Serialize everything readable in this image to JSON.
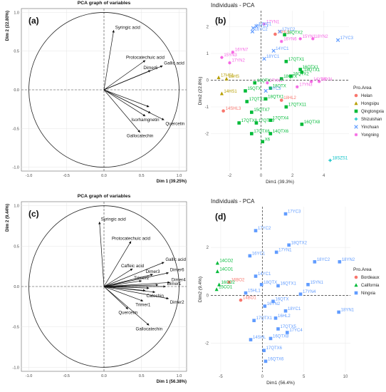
{
  "panels": {
    "a": {
      "letter": "(a)",
      "chart_data": {
        "type": "scatter",
        "subtype": "pca-correlation-circle",
        "title": "PCA graph of variables",
        "xlabel": "Dim 1 (39.25%)",
        "ylabel": "Dim 2 (22.80%)",
        "xlim": [
          -1.1,
          1.1
        ],
        "ylim": [
          -1.05,
          1.05
        ],
        "xticks": [
          "-1.0",
          "-0.5",
          "0.0",
          "0.5",
          "1.0"
        ],
        "yticks": [
          "-1.0",
          "-0.5",
          "0.0",
          "0.5",
          "1.0"
        ],
        "grid": true,
        "vectors": [
          {
            "name": "Syringic acid",
            "x": 0.13,
            "y": 0.77
          },
          {
            "name": "Protocatechuic acid",
            "x": 0.55,
            "y": 0.38
          },
          {
            "name": "Gallic acid",
            "x": 0.78,
            "y": 0.31
          },
          {
            "name": "Dimer6",
            "x": 0.62,
            "y": 0.25
          },
          {
            "name": "Isorhamgnetin",
            "x": 0.55,
            "y": -0.34
          },
          {
            "name": "Quercetin",
            "x": 0.8,
            "y": -0.39
          },
          {
            "name": "Gallocatechin",
            "x": 0.48,
            "y": -0.55
          },
          {
            "name": "",
            "x": 0.6,
            "y": -0.22
          },
          {
            "name": "",
            "x": 0.62,
            "y": -0.3
          }
        ]
      }
    },
    "b": {
      "letter": "(b)",
      "chart_data": {
        "type": "scatter",
        "title": "Individuals - PCA",
        "xlabel": "Dim1 (39.3%)",
        "ylabel": "Dim2 (22.8%)",
        "xlim": [
          -3.2,
          5.6
        ],
        "ylim": [
          -3.4,
          2.6
        ],
        "xticks": [
          -2,
          0,
          2,
          4
        ],
        "yticks": [
          -2,
          -1,
          0,
          1,
          2
        ],
        "grid": true,
        "legend": {
          "title": "Pro.Area",
          "placement": "right",
          "entries": [
            {
              "label": "Helan",
              "color": "#F8766D",
              "shape": "circle"
            },
            {
              "label": "Hongsipu",
              "color": "#B79F00",
              "shape": "triangle"
            },
            {
              "label": "Qingtongxia",
              "color": "#00BA38",
              "shape": "square"
            },
            {
              "label": "Shizuishan",
              "color": "#00BFC4",
              "shape": "plus"
            },
            {
              "label": "Yinchuan",
              "color": "#619CFF",
              "shape": "cross"
            },
            {
              "label": "Yongning",
              "color": "#F564E3",
              "shape": "asterisk"
            }
          ]
        },
        "points": [
          {
            "label": "17YN1",
            "x": 0.2,
            "y": 2.1,
            "group": "Yongning"
          },
          {
            "label": "16YC1",
            "x": -0.5,
            "y": 1.95,
            "group": "Yinchuan"
          },
          {
            "label": "17YC1",
            "x": -0.3,
            "y": 2.02,
            "group": "Yinchuan"
          },
          {
            "label": "16YC2",
            "x": -0.55,
            "y": 1.82,
            "group": "Yinchuan"
          },
          {
            "label": "16HL1",
            "x": 0.9,
            "y": 1.72,
            "group": "Helan"
          },
          {
            "label": "17YC2",
            "x": 1.2,
            "y": 1.82,
            "group": "Yinchuan"
          },
          {
            "label": "18QTX2",
            "x": 1.5,
            "y": 1.7,
            "group": "Qingtongxia"
          },
          {
            "label": "15YN1",
            "x": 2.5,
            "y": 1.55,
            "group": "Yongning"
          },
          {
            "label": "18YN2",
            "x": 3.3,
            "y": 1.55,
            "group": "Yongning"
          },
          {
            "label": "17YC3",
            "x": 4.9,
            "y": 1.5,
            "group": "Yinchuan"
          },
          {
            "label": "16YN6",
            "x": 1.3,
            "y": 1.45,
            "group": "Yongning"
          },
          {
            "label": "14YC1",
            "x": 0.8,
            "y": 1.1,
            "group": "Yinchuan"
          },
          {
            "label": "16YN7",
            "x": -1.8,
            "y": 1.05,
            "group": "Yongning"
          },
          {
            "label": "15YN3",
            "x": -2.5,
            "y": 0.85,
            "group": "Yongning"
          },
          {
            "label": "17QTX1",
            "x": 1.6,
            "y": 0.7,
            "group": "Qingtongxia"
          },
          {
            "label": "18YC1",
            "x": 0.2,
            "y": 0.8,
            "group": "Yinchuan"
          },
          {
            "label": "16QTX1",
            "x": 2.5,
            "y": 0.4,
            "group": "Qingtongxia"
          },
          {
            "label": "18QTX1",
            "x": 2.6,
            "y": 0.3,
            "group": "Qingtongxia"
          },
          {
            "label": "16QTX2",
            "x": 1.9,
            "y": 0.15,
            "group": "Qingtongxia"
          },
          {
            "label": "17YN2",
            "x": -2.0,
            "y": 0.65,
            "group": "Yongning"
          },
          {
            "label": "18QTX",
            "x": 1.3,
            "y": 0.05,
            "group": "Qingtongxia"
          },
          {
            "label": "17YN3",
            "x": 2.3,
            "y": -0.25,
            "group": "Yongning"
          },
          {
            "label": "14YN2",
            "x": 3.2,
            "y": -0.05,
            "group": "Yongning"
          },
          {
            "label": "16YN",
            "x": 3.7,
            "y": -0.05,
            "group": "Yongning"
          },
          {
            "label": "17HS1",
            "x": -2.7,
            "y": 0.1,
            "group": "Hongsipu"
          },
          {
            "label": "18HS",
            "x": -2.2,
            "y": 0.05,
            "group": "Hongsipu"
          },
          {
            "label": "16QTX",
            "x": -0.4,
            "y": -0.1,
            "group": "Qingtongxia"
          },
          {
            "label": "17YN1",
            "x": 0.4,
            "y": -0.1,
            "group": "Yongning"
          },
          {
            "label": "18QTX",
            "x": 0.6,
            "y": -0.3,
            "group": "Qingtongxia"
          },
          {
            "label": "16YC3",
            "x": 0.3,
            "y": -0.4,
            "group": "Yinchuan"
          },
          {
            "label": "15QTX",
            "x": -1.0,
            "y": -0.4,
            "group": "Qingtongxia"
          },
          {
            "label": "14HS1",
            "x": -2.5,
            "y": -0.5,
            "group": "Hongsipu"
          },
          {
            "label": "18HL2",
            "x": 1.3,
            "y": -0.75,
            "group": "Helan"
          },
          {
            "label": "17QTX10",
            "x": -0.9,
            "y": -0.8,
            "group": "Qingtongxia"
          },
          {
            "label": "18QTX1",
            "x": 0.3,
            "y": -0.7,
            "group": "Qingtongxia"
          },
          {
            "label": "17QTX11",
            "x": 1.6,
            "y": -1.0,
            "group": "Qingtongxia"
          },
          {
            "label": "14SHL3",
            "x": -2.4,
            "y": -1.15,
            "group": "Helan"
          },
          {
            "label": "15QTX7",
            "x": -0.6,
            "y": -1.2,
            "group": "Qingtongxia"
          },
          {
            "label": "17QTX4",
            "x": 0.6,
            "y": -1.5,
            "group": "Qingtongxia"
          },
          {
            "label": "17QTX8",
            "x": -1.4,
            "y": -1.6,
            "group": "Qingtongxia"
          },
          {
            "label": "17QTX9",
            "x": -0.3,
            "y": -1.6,
            "group": "Qingtongxia"
          },
          {
            "label": "16QTX8",
            "x": 2.6,
            "y": -1.65,
            "group": "Qingtongxia"
          },
          {
            "label": "14QTX6",
            "x": 0.6,
            "y": -2.0,
            "group": "Qingtongxia"
          },
          {
            "label": "17QTX6",
            "x": -0.6,
            "y": -2.0,
            "group": "Qingtongxia"
          },
          {
            "label": "X6",
            "x": 0.1,
            "y": -2.3,
            "group": "Qingtongxia"
          },
          {
            "label": "18SZS1",
            "x": 4.4,
            "y": -3.0,
            "group": "Shizuishan"
          }
        ]
      }
    },
    "c": {
      "letter": "(c)",
      "chart_data": {
        "type": "scatter",
        "subtype": "pca-correlation-circle",
        "title": "PCA graph of variables",
        "xlabel": "Dim 1 (56.38%)",
        "ylabel": "Dim 2 (9.44%)",
        "xlim": [
          -1.1,
          1.1
        ],
        "ylim": [
          -1.05,
          1.05
        ],
        "xticks": [
          "-1.0",
          "-0.5",
          "0.0",
          "0.5",
          "1.0"
        ],
        "yticks": [
          "-1.0",
          "-0.5",
          "0.0",
          "0.5",
          "1.0"
        ],
        "grid": true,
        "vectors": [
          {
            "name": "Syringic acid",
            "x": -0.06,
            "y": 0.8
          },
          {
            "name": "Protocatechuic acid",
            "x": 0.36,
            "y": 0.56
          },
          {
            "name": "Gallic acid",
            "x": 0.8,
            "y": 0.3
          },
          {
            "name": "Caffeic acid",
            "x": 0.38,
            "y": 0.22
          },
          {
            "name": "Dimer3",
            "x": 0.65,
            "y": 0.15
          },
          {
            "name": "Dimer6",
            "x": 0.86,
            "y": 0.17
          },
          {
            "name": "Trimer2",
            "x": 0.5,
            "y": 0.07
          },
          {
            "name": "Dimer4",
            "x": 0.88,
            "y": 0.05
          },
          {
            "name": "Dimer1",
            "x": 0.82,
            "y": 0.0
          },
          {
            "name": "Catechin",
            "x": 0.68,
            "y": -0.07
          },
          {
            "name": "Dimer2",
            "x": 0.86,
            "y": -0.15
          },
          {
            "name": "Trimer1",
            "x": 0.52,
            "y": -0.18
          },
          {
            "name": "Quercetin",
            "x": 0.32,
            "y": -0.28
          },
          {
            "name": "Gallocatechin",
            "x": 0.6,
            "y": -0.48
          },
          {
            "name": "",
            "x": 0.6,
            "y": -0.02
          },
          {
            "name": "",
            "x": 0.72,
            "y": 0.02
          },
          {
            "name": "",
            "x": 0.55,
            "y": -0.05
          }
        ]
      }
    },
    "d": {
      "letter": "(d)",
      "chart_data": {
        "type": "scatter",
        "title": "Individuals - PCA",
        "xlabel": "Dim1 (56.4%)",
        "ylabel": "Dim2 (9.4%)",
        "xlim": [
          -6.2,
          10.6
        ],
        "ylim": [
          -3.2,
          3.7
        ],
        "xticks": [
          -5,
          0,
          5,
          10
        ],
        "yticks": [
          -2,
          0,
          2
        ],
        "grid": true,
        "legend": {
          "title": "Pro.Area",
          "placement": "right",
          "entries": [
            {
              "label": "Bordeaux",
              "color": "#F8766D",
              "shape": "circle"
            },
            {
              "label": "California",
              "color": "#00BA38",
              "shape": "triangle"
            },
            {
              "label": "Ningxia",
              "color": "#619CFF",
              "shape": "square"
            }
          ]
        },
        "points": [
          {
            "label": "17YC3",
            "x": 2.8,
            "y": 3.4,
            "group": "Ningxia"
          },
          {
            "label": "17YC2",
            "x": -0.8,
            "y": 2.7,
            "group": "Ningxia"
          },
          {
            "label": "18QTX2",
            "x": 3.2,
            "y": 2.1,
            "group": "Ningxia"
          },
          {
            "label": "17YN1",
            "x": 1.7,
            "y": 1.8,
            "group": "Ningxia"
          },
          {
            "label": "18YC2",
            "x": 6.3,
            "y": 1.4,
            "group": "Ningxia"
          },
          {
            "label": "18YN2",
            "x": 9.3,
            "y": 1.4,
            "group": "Ningxia"
          },
          {
            "label": "16YC1",
            "x": -1.5,
            "y": 1.65,
            "group": "Ningxia"
          },
          {
            "label": "14CO2",
            "x": -5.4,
            "y": 1.35,
            "group": "California"
          },
          {
            "label": "14CO1",
            "x": -5.4,
            "y": 1.0,
            "group": "California"
          },
          {
            "label": "14YC1",
            "x": -0.8,
            "y": 0.8,
            "group": "Ningxia"
          },
          {
            "label": "16QTX1",
            "x": 1.9,
            "y": 0.4,
            "group": "Ningxia"
          },
          {
            "label": "18QTX",
            "x": -0.1,
            "y": 0.45,
            "group": "Ningxia"
          },
          {
            "label": "15YN1",
            "x": 5.5,
            "y": 0.45,
            "group": "Ningxia"
          },
          {
            "label": "16BO2",
            "x": -4.0,
            "y": 0.55,
            "group": "Bordeaux"
          },
          {
            "label": "16CO2",
            "x": -5.2,
            "y": 0.45,
            "group": "California"
          },
          {
            "label": "15CO1",
            "x": -5.5,
            "y": 0.25,
            "group": "California"
          },
          {
            "label": "15HL1",
            "x": -2.0,
            "y": 0.1,
            "group": "Ningxia"
          },
          {
            "label": "17YN4",
            "x": 4.6,
            "y": 0.05,
            "group": "Ningxia"
          },
          {
            "label": "14BO1",
            "x": -2.6,
            "y": -0.2,
            "group": "Bordeaux"
          },
          {
            "label": "16QTX",
            "x": 1.3,
            "y": -0.25,
            "group": "Ningxia"
          },
          {
            "label": "16YN2",
            "x": 0.3,
            "y": -0.45,
            "group": "Ningxia"
          },
          {
            "label": "18YC1",
            "x": 2.8,
            "y": -0.65,
            "group": "Ningxia"
          },
          {
            "label": "18YN1",
            "x": 9.2,
            "y": -0.7,
            "group": "Ningxia"
          },
          {
            "label": "16HL2",
            "x": 1.6,
            "y": -0.95,
            "group": "Ningxia"
          },
          {
            "label": "17QTX1",
            "x": -1.0,
            "y": -1.05,
            "group": "Ningxia"
          },
          {
            "label": "17QTX5",
            "x": 1.9,
            "y": -1.4,
            "group": "Ningxia"
          },
          {
            "label": "17YC4",
            "x": 3.0,
            "y": -1.55,
            "group": "Ningxia"
          },
          {
            "label": "14SHL",
            "x": -1.4,
            "y": -1.85,
            "group": "Ningxia"
          },
          {
            "label": "16QTX8",
            "x": 1.0,
            "y": -1.8,
            "group": "Ningxia"
          },
          {
            "label": "17QTX6",
            "x": 0.2,
            "y": -2.3,
            "group": "Ningxia"
          },
          {
            "label": "16QTX6",
            "x": 0.4,
            "y": -2.75,
            "group": "Ningxia"
          }
        ]
      }
    }
  }
}
